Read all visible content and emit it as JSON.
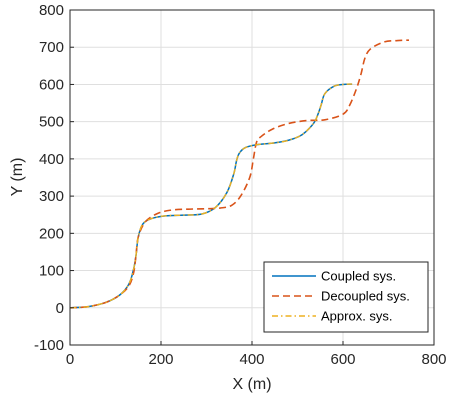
{
  "chart_data": {
    "type": "line",
    "title": "",
    "xlabel": "X (m)",
    "ylabel": "Y (m)",
    "xlim": [
      0,
      800
    ],
    "ylim": [
      -100,
      800
    ],
    "xticks": [
      0,
      200,
      400,
      600,
      800
    ],
    "yticks": [
      -100,
      0,
      100,
      200,
      300,
      400,
      500,
      600,
      700,
      800
    ],
    "grid": true,
    "legend_location": "bottom-right",
    "series": [
      {
        "name": "Coupled sys.",
        "color": "#0072BD",
        "style": "solid",
        "x": [
          0,
          40,
          80,
          110,
          130,
          140,
          145,
          150,
          160,
          180,
          210,
          250,
          290,
          320,
          345,
          360,
          366,
          372,
          385,
          410,
          450,
          480,
          510,
          535,
          545,
          552,
          560,
          580,
          600,
          620
        ],
        "y": [
          0,
          3,
          15,
          35,
          65,
          105,
          140,
          190,
          225,
          240,
          247,
          249,
          252,
          270,
          310,
          360,
          395,
          415,
          430,
          438,
          443,
          450,
          465,
          495,
          520,
          545,
          575,
          595,
          600,
          601
        ]
      },
      {
        "name": "Decoupled sys.",
        "color": "#D95319",
        "style": "dashed",
        "x": [
          0,
          40,
          80,
          110,
          130,
          140,
          145,
          150,
          165,
          190,
          220,
          260,
          300,
          330,
          355,
          375,
          395,
          403,
          410,
          420,
          445,
          480,
          520,
          560,
          600,
          615,
          630,
          640,
          648,
          660,
          690,
          720,
          745
        ],
        "y": [
          0,
          3,
          15,
          35,
          60,
          95,
          140,
          190,
          230,
          252,
          262,
          265,
          266,
          268,
          275,
          300,
          350,
          400,
          445,
          460,
          480,
          495,
          503,
          505,
          520,
          545,
          590,
          630,
          670,
          695,
          714,
          718,
          719
        ]
      },
      {
        "name": "Approx. sys.",
        "color": "#EDB120",
        "style": "dashdot",
        "x": [
          0,
          40,
          80,
          110,
          130,
          140,
          145,
          150,
          160,
          180,
          210,
          250,
          290,
          320,
          345,
          360,
          366,
          372,
          385,
          410,
          450,
          480,
          510,
          535,
          545,
          552,
          560,
          580,
          600,
          620
        ],
        "y": [
          0,
          3,
          15,
          35,
          65,
          105,
          140,
          190,
          225,
          240,
          247,
          249,
          252,
          270,
          310,
          360,
          395,
          415,
          430,
          438,
          443,
          450,
          465,
          495,
          520,
          545,
          575,
          595,
          600,
          601
        ]
      }
    ]
  }
}
